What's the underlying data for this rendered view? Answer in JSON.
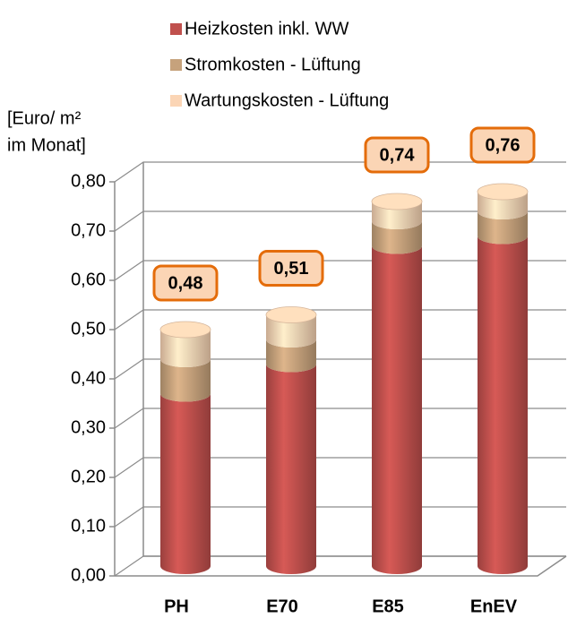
{
  "chart_data": {
    "type": "bar3d_stacked",
    "y_label": [
      "[Euro/ m²",
      "im Monat]"
    ],
    "categories": [
      "PH",
      "E70",
      "E85",
      "EnEV"
    ],
    "series": [
      {
        "name": "Heizkosten inkl. WW",
        "color": "#c0504d",
        "values": [
          0.35,
          0.41,
          0.65,
          0.67
        ]
      },
      {
        "name": "Stromkosten - Lüftung",
        "color": "#c6a27c",
        "values": [
          0.07,
          0.05,
          0.05,
          0.05
        ]
      },
      {
        "name": "Wartungskosten - Lüftung",
        "color": "#fbd5b5",
        "values": [
          0.06,
          0.05,
          0.04,
          0.04
        ]
      }
    ],
    "totals": [
      0.48,
      0.51,
      0.74,
      0.76
    ],
    "total_labels": [
      "0,48",
      "0,51",
      "0,74",
      "0,76"
    ],
    "ylim": [
      0,
      0.8
    ],
    "yticks": [
      {
        "value": 0,
        "label": "0,00"
      },
      {
        "value": 0.1,
        "label": "0,10"
      },
      {
        "value": 0.2,
        "label": "0,20"
      },
      {
        "value": 0.3,
        "label": "0,30"
      },
      {
        "value": 0.4,
        "label": "0,40"
      },
      {
        "value": 0.5,
        "label": "0,50"
      },
      {
        "value": 0.6,
        "label": "0,60"
      },
      {
        "value": 0.7,
        "label": "0,70"
      },
      {
        "value": 0.8,
        "label": "0,80"
      }
    ],
    "grid": true,
    "legend": "top"
  }
}
